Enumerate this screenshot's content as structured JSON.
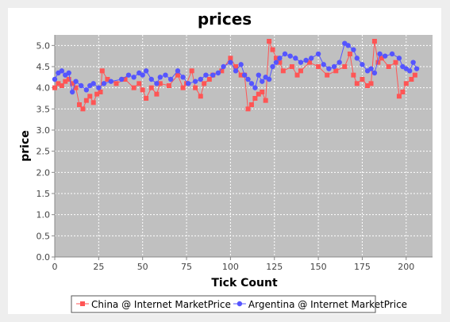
{
  "chart_data": {
    "type": "line",
    "title": "prices",
    "xlabel": "Tick Count",
    "ylabel": "price",
    "xlim": [
      0,
      215
    ],
    "ylim": [
      0.0,
      5.25
    ],
    "x_ticks": [
      0,
      25,
      50,
      75,
      100,
      125,
      150,
      175,
      200
    ],
    "y_ticks": [
      0.0,
      0.5,
      1.0,
      1.5,
      2.0,
      2.5,
      3.0,
      3.5,
      4.0,
      4.5,
      5.0
    ],
    "grid": true,
    "legend_position": "bottom",
    "background": "#c0c0c0",
    "series": [
      {
        "name": "China @ Internet MarketPrice",
        "color": "#ff5555",
        "marker": "square",
        "points": [
          [
            0,
            4.0
          ],
          [
            2,
            4.1
          ],
          [
            4,
            4.05
          ],
          [
            6,
            4.15
          ],
          [
            8,
            4.2
          ],
          [
            10,
            4.1
          ],
          [
            12,
            4.0
          ],
          [
            14,
            3.6
          ],
          [
            16,
            3.5
          ],
          [
            18,
            3.7
          ],
          [
            20,
            3.8
          ],
          [
            22,
            3.65
          ],
          [
            24,
            3.85
          ],
          [
            26,
            3.9
          ],
          [
            27,
            4.4
          ],
          [
            30,
            4.2
          ],
          [
            35,
            4.1
          ],
          [
            40,
            4.2
          ],
          [
            45,
            4.0
          ],
          [
            48,
            4.1
          ],
          [
            50,
            3.95
          ],
          [
            52,
            3.75
          ],
          [
            55,
            4.0
          ],
          [
            58,
            3.85
          ],
          [
            60,
            4.1
          ],
          [
            65,
            4.05
          ],
          [
            70,
            4.3
          ],
          [
            73,
            4.0
          ],
          [
            75,
            4.1
          ],
          [
            78,
            4.4
          ],
          [
            80,
            4.0
          ],
          [
            83,
            3.8
          ],
          [
            85,
            4.1
          ],
          [
            88,
            4.2
          ],
          [
            90,
            4.3
          ],
          [
            95,
            4.4
          ],
          [
            100,
            4.7
          ],
          [
            103,
            4.5
          ],
          [
            106,
            4.3
          ],
          [
            108,
            4.3
          ],
          [
            110,
            3.5
          ],
          [
            112,
            3.6
          ],
          [
            114,
            3.75
          ],
          [
            116,
            3.85
          ],
          [
            118,
            3.9
          ],
          [
            120,
            3.7
          ],
          [
            122,
            5.1
          ],
          [
            124,
            4.9
          ],
          [
            126,
            4.7
          ],
          [
            128,
            4.6
          ],
          [
            130,
            4.4
          ],
          [
            135,
            4.5
          ],
          [
            138,
            4.3
          ],
          [
            140,
            4.4
          ],
          [
            145,
            4.6
          ],
          [
            150,
            4.5
          ],
          [
            155,
            4.3
          ],
          [
            160,
            4.4
          ],
          [
            165,
            4.5
          ],
          [
            168,
            4.8
          ],
          [
            170,
            4.3
          ],
          [
            172,
            4.1
          ],
          [
            175,
            4.2
          ],
          [
            178,
            4.05
          ],
          [
            180,
            4.1
          ],
          [
            182,
            5.1
          ],
          [
            184,
            4.6
          ],
          [
            186,
            4.7
          ],
          [
            190,
            4.5
          ],
          [
            194,
            4.6
          ],
          [
            196,
            3.8
          ],
          [
            198,
            3.9
          ],
          [
            200,
            4.1
          ],
          [
            203,
            4.2
          ],
          [
            205,
            4.3
          ]
        ]
      },
      {
        "name": "Argentina @ Internet MarketPrice",
        "color": "#5555ff",
        "marker": "circle",
        "points": [
          [
            0,
            4.2
          ],
          [
            2,
            4.35
          ],
          [
            4,
            4.4
          ],
          [
            6,
            4.3
          ],
          [
            8,
            4.35
          ],
          [
            10,
            3.9
          ],
          [
            12,
            4.15
          ],
          [
            15,
            4.05
          ],
          [
            18,
            3.95
          ],
          [
            20,
            4.05
          ],
          [
            22,
            4.1
          ],
          [
            25,
            4.0
          ],
          [
            28,
            4.1
          ],
          [
            32,
            4.15
          ],
          [
            38,
            4.2
          ],
          [
            42,
            4.3
          ],
          [
            45,
            4.25
          ],
          [
            48,
            4.35
          ],
          [
            50,
            4.3
          ],
          [
            52,
            4.4
          ],
          [
            55,
            4.2
          ],
          [
            58,
            4.1
          ],
          [
            60,
            4.25
          ],
          [
            63,
            4.3
          ],
          [
            66,
            4.2
          ],
          [
            70,
            4.4
          ],
          [
            73,
            4.25
          ],
          [
            76,
            4.1
          ],
          [
            80,
            4.15
          ],
          [
            83,
            4.2
          ],
          [
            86,
            4.3
          ],
          [
            90,
            4.3
          ],
          [
            93,
            4.35
          ],
          [
            96,
            4.5
          ],
          [
            100,
            4.6
          ],
          [
            103,
            4.4
          ],
          [
            106,
            4.55
          ],
          [
            108,
            4.3
          ],
          [
            110,
            4.2
          ],
          [
            112,
            4.1
          ],
          [
            114,
            4.0
          ],
          [
            116,
            4.3
          ],
          [
            118,
            4.15
          ],
          [
            120,
            4.25
          ],
          [
            122,
            4.2
          ],
          [
            124,
            4.5
          ],
          [
            126,
            4.6
          ],
          [
            128,
            4.7
          ],
          [
            131,
            4.8
          ],
          [
            134,
            4.75
          ],
          [
            137,
            4.7
          ],
          [
            140,
            4.6
          ],
          [
            143,
            4.65
          ],
          [
            146,
            4.7
          ],
          [
            150,
            4.8
          ],
          [
            153,
            4.55
          ],
          [
            156,
            4.45
          ],
          [
            159,
            4.5
          ],
          [
            162,
            4.6
          ],
          [
            165,
            5.05
          ],
          [
            167,
            5.0
          ],
          [
            170,
            4.9
          ],
          [
            172,
            4.7
          ],
          [
            175,
            4.55
          ],
          [
            178,
            4.4
          ],
          [
            180,
            4.45
          ],
          [
            182,
            4.35
          ],
          [
            185,
            4.8
          ],
          [
            188,
            4.75
          ],
          [
            192,
            4.8
          ],
          [
            196,
            4.7
          ],
          [
            198,
            4.5
          ],
          [
            200,
            4.45
          ],
          [
            202,
            4.4
          ],
          [
            204,
            4.6
          ],
          [
            206,
            4.45
          ]
        ]
      }
    ]
  }
}
